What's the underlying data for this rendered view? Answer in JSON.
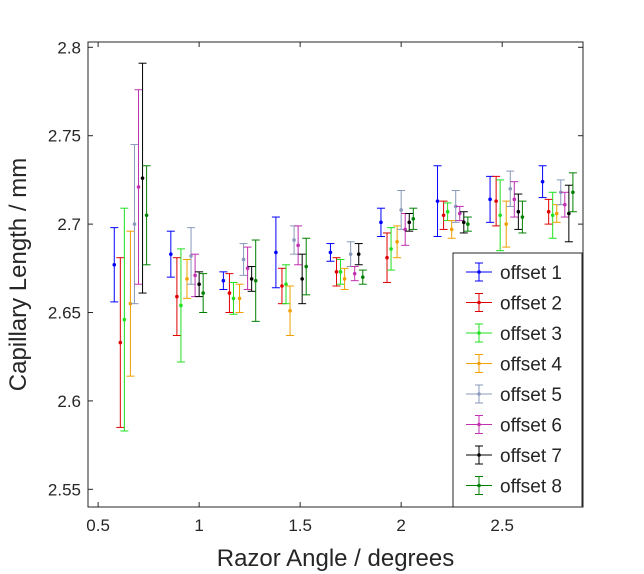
{
  "chart_data": {
    "type": "scatter",
    "title": "",
    "xlabel": "Razor Angle / degrees",
    "ylabel": "Capillary Length / mm",
    "xlim": [
      0.45,
      2.9
    ],
    "ylim": [
      2.54,
      2.803
    ],
    "xticks": [
      0.5,
      1,
      1.5,
      2,
      2.5
    ],
    "xtick_labels": [
      "0.5",
      "1",
      "1.5",
      "2",
      "2.5"
    ],
    "yticks": [
      2.55,
      2.6,
      2.65,
      2.7,
      2.75,
      2.8
    ],
    "ytick_labels": [
      "2.55",
      "2.6",
      "2.65",
      "2.7",
      "2.75",
      "2.8"
    ],
    "grid": false,
    "legend_position": "bottom-right",
    "error_bars": true,
    "series": [
      {
        "name": "offset 1",
        "color": "#0000ff",
        "x": [
          0.58,
          0.86,
          1.12,
          1.38,
          1.65,
          1.9,
          2.18,
          2.44,
          2.7
        ],
        "y": [
          2.677,
          2.683,
          2.668,
          2.684,
          2.684,
          2.701,
          2.713,
          2.714,
          2.724
        ],
        "yerr": [
          0.021,
          0.013,
          0.005,
          0.02,
          0.005,
          0.008,
          0.02,
          0.013,
          0.009
        ]
      },
      {
        "name": "offset 2",
        "color": "#e00000",
        "x": [
          0.61,
          0.89,
          1.15,
          1.41,
          1.68,
          1.93,
          2.21,
          2.47,
          2.73
        ],
        "y": [
          2.633,
          2.659,
          2.661,
          2.665,
          2.673,
          2.681,
          2.705,
          2.713,
          2.707
        ],
        "yerr": [
          0.048,
          0.022,
          0.011,
          0.01,
          0.008,
          0.014,
          0.008,
          0.014,
          0.007
        ]
      },
      {
        "name": "offset 3",
        "color": "#20e020",
        "x": [
          0.63,
          0.91,
          1.17,
          1.43,
          1.7,
          1.95,
          2.23,
          2.49,
          2.75
        ],
        "y": [
          2.646,
          2.654,
          2.658,
          2.666,
          2.673,
          2.686,
          2.707,
          2.705,
          2.705
        ],
        "yerr": [
          0.063,
          0.032,
          0.009,
          0.011,
          0.007,
          0.012,
          0.005,
          0.02,
          0.013
        ]
      },
      {
        "name": "offset 4",
        "color": "#f0a000",
        "x": [
          0.66,
          0.94,
          1.2,
          1.45,
          1.72,
          1.98,
          2.25,
          2.52,
          2.77
        ],
        "y": [
          2.655,
          2.669,
          2.658,
          2.651,
          2.669,
          2.69,
          2.697,
          2.7,
          2.706
        ],
        "yerr": [
          0.041,
          0.011,
          0.008,
          0.014,
          0.006,
          0.009,
          0.005,
          0.013,
          0.005
        ]
      },
      {
        "name": "offset 5",
        "color": "#8899bb",
        "x": [
          0.68,
          0.96,
          1.22,
          1.47,
          1.75,
          2.0,
          2.27,
          2.54,
          2.79
        ],
        "y": [
          2.7,
          2.682,
          2.68,
          2.691,
          2.683,
          2.708,
          2.71,
          2.72,
          2.718
        ],
        "yerr": [
          0.045,
          0.016,
          0.009,
          0.008,
          0.007,
          0.011,
          0.009,
          0.01,
          0.007
        ]
      },
      {
        "name": "offset 6",
        "color": "#c030b0",
        "x": [
          0.7,
          0.98,
          1.24,
          1.49,
          1.77,
          2.02,
          2.29,
          2.56,
          2.81
        ],
        "y": [
          2.721,
          2.671,
          2.675,
          2.688,
          2.672,
          2.697,
          2.706,
          2.714,
          2.711
        ],
        "yerr": [
          0.055,
          0.012,
          0.012,
          0.011,
          0.004,
          0.009,
          0.004,
          0.01,
          0.007
        ]
      },
      {
        "name": "offset 7",
        "color": "#000000",
        "x": [
          0.72,
          1.0,
          1.26,
          1.51,
          1.79,
          2.04,
          2.31,
          2.58,
          2.83
        ],
        "y": [
          2.726,
          2.666,
          2.669,
          2.669,
          2.683,
          2.701,
          2.701,
          2.707,
          2.706
        ],
        "yerr": [
          0.065,
          0.007,
          0.007,
          0.014,
          0.006,
          0.005,
          0.006,
          0.01,
          0.016
        ]
      },
      {
        "name": "offset 8",
        "color": "#008000",
        "x": [
          0.74,
          1.02,
          1.28,
          1.53,
          1.81,
          2.06,
          2.33,
          2.6,
          2.85
        ],
        "y": [
          2.705,
          2.661,
          2.668,
          2.676,
          2.67,
          2.703,
          2.7,
          2.704,
          2.718
        ],
        "yerr": [
          0.028,
          0.011,
          0.023,
          0.016,
          0.004,
          0.006,
          0.004,
          0.009,
          0.011
        ]
      }
    ]
  }
}
